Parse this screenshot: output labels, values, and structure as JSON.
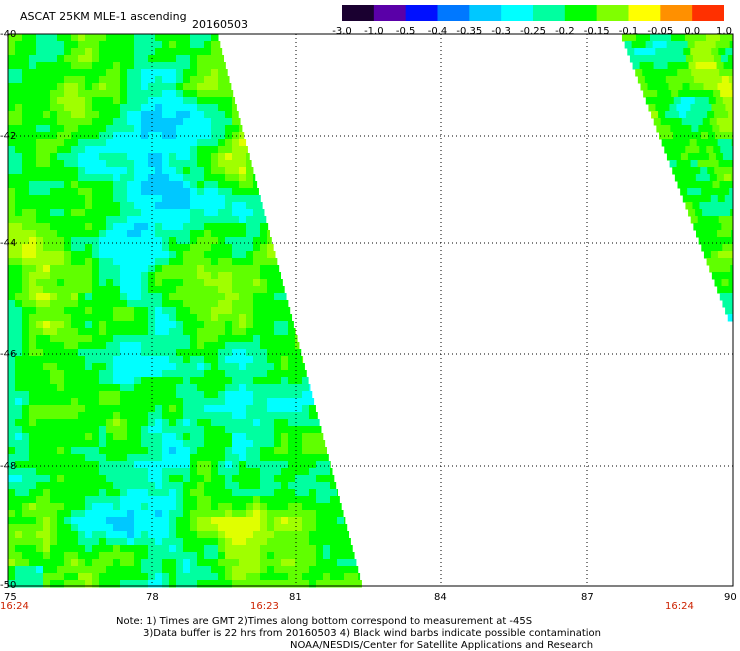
{
  "header": {
    "title": "ASCAT 25KM MLE-1 ascending",
    "date": "20160503"
  },
  "colorbar": {
    "labels": [
      "-3.0",
      "-1.0",
      "-0.5",
      "-0.4",
      "-0.35",
      "-0.3",
      "-0.25",
      "-0.2",
      "-0.15",
      "-0.1",
      "-0.05",
      "0.0",
      "1.0"
    ],
    "colors": [
      "#1a0030",
      "#5a00a8",
      "#0010ff",
      "#0078ff",
      "#00c8ff",
      "#00ffff",
      "#00ffa0",
      "#00ff00",
      "#80ff00",
      "#ffff00",
      "#ff9000",
      "#ff3000"
    ]
  },
  "axes": {
    "lat_labels": [
      "-40",
      "-42",
      "-44",
      "-46",
      "-48",
      "-50"
    ],
    "lon_labels": [
      "75",
      "78",
      "81",
      "84",
      "87",
      "90"
    ]
  },
  "times": {
    "left": "16:24",
    "middle": "16:23",
    "right": "16:24"
  },
  "notes": {
    "line1": "Note: 1) Times are GMT 2)Times along bottom correspond to measurement at -45S",
    "line2": "3)Data buffer is 22 hrs from 20160503 4) Black wind barbs indicate possible contamination",
    "line3": "NOAA/NESDIS/Center for Satellite Applications and Research"
  }
}
